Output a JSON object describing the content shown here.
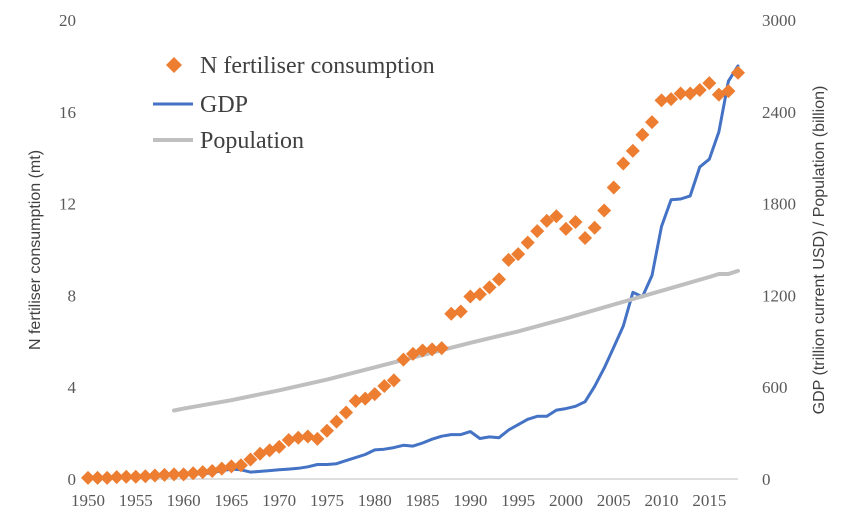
{
  "chart_data": {
    "type": "line",
    "xlabel": "",
    "ylabel": "N fertiliser consumption (mt)",
    "y2label": "GDP (trillion current USD) / Population (billion)",
    "xlim": [
      1950,
      2018
    ],
    "ylim": [
      0,
      20
    ],
    "y2lim": [
      0,
      3000
    ],
    "x_ticks": [
      "1950",
      "1955",
      "1960",
      "1965",
      "1970",
      "1975",
      "1980",
      "1985",
      "1990",
      "1995",
      "2000",
      "2005",
      "2010",
      "2015"
    ],
    "y_ticks": [
      "0",
      "4",
      "8",
      "12",
      "16",
      "20"
    ],
    "y2_ticks": [
      "0",
      "600",
      "1200",
      "1800",
      "2400",
      "3000"
    ],
    "grid": false,
    "legend_position": "top-left",
    "series": [
      {
        "name": "N fertiliser consumption",
        "axis": "left",
        "style": "diamond-markers",
        "color": "#ED7D31",
        "x": [
          1950,
          1951,
          1952,
          1953,
          1954,
          1955,
          1956,
          1957,
          1958,
          1959,
          1960,
          1961,
          1962,
          1963,
          1964,
          1965,
          1966,
          1967,
          1968,
          1969,
          1970,
          1971,
          1972,
          1973,
          1974,
          1975,
          1976,
          1977,
          1978,
          1979,
          1980,
          1981,
          1982,
          1983,
          1984,
          1985,
          1986,
          1987,
          1988,
          1989,
          1990,
          1991,
          1992,
          1993,
          1994,
          1995,
          1996,
          1997,
          1998,
          1999,
          2000,
          2001,
          2002,
          2003,
          2004,
          2005,
          2006,
          2007,
          2008,
          2009,
          2010,
          2011,
          2012,
          2013,
          2014,
          2015,
          2016,
          2017,
          2018
        ],
        "values": [
          0.05,
          0.05,
          0.05,
          0.08,
          0.1,
          0.1,
          0.12,
          0.15,
          0.18,
          0.2,
          0.2,
          0.25,
          0.3,
          0.35,
          0.45,
          0.55,
          0.6,
          0.85,
          1.1,
          1.25,
          1.4,
          1.7,
          1.8,
          1.85,
          1.75,
          2.1,
          2.5,
          2.9,
          3.4,
          3.5,
          3.7,
          4.05,
          4.3,
          5.2,
          5.45,
          5.6,
          5.65,
          5.7,
          7.2,
          7.3,
          7.95,
          8.05,
          8.35,
          8.7,
          9.55,
          9.8,
          10.3,
          10.8,
          11.25,
          11.45,
          10.9,
          11.2,
          10.5,
          10.95,
          11.7,
          12.7,
          13.75,
          14.3,
          15,
          15.55,
          16.5,
          16.55,
          16.8,
          16.8,
          16.95,
          17.25,
          16.75,
          16.9,
          17.7
        ]
      },
      {
        "name": "GDP",
        "axis": "right",
        "style": "line",
        "color": "#4472C4",
        "x": [
          1960,
          1961,
          1962,
          1963,
          1964,
          1965,
          1966,
          1967,
          1968,
          1969,
          1970,
          1971,
          1972,
          1973,
          1974,
          1975,
          1976,
          1977,
          1978,
          1979,
          1980,
          1981,
          1982,
          1983,
          1984,
          1985,
          1986,
          1987,
          1988,
          1989,
          1990,
          1991,
          1992,
          1993,
          1994,
          1995,
          1996,
          1997,
          1998,
          1999,
          2000,
          2001,
          2002,
          2003,
          2004,
          2005,
          2006,
          2007,
          2008,
          2009,
          2010,
          2011,
          2012,
          2013,
          2014,
          2015,
          2016,
          2017,
          2018
        ],
        "values": [
          30,
          30,
          35,
          40,
          55,
          65,
          60,
          45,
          50,
          55,
          60,
          65,
          70,
          80,
          95,
          95,
          100,
          120,
          140,
          160,
          190,
          195,
          205,
          220,
          215,
          235,
          260,
          280,
          290,
          290,
          310,
          265,
          275,
          270,
          320,
          355,
          390,
          410,
          410,
          450,
          460,
          475,
          505,
          605,
          725,
          860,
          1000,
          1220,
          1190,
          1330,
          1650,
          1825,
          1830,
          1850,
          2040,
          2090,
          2270,
          2600,
          2700
        ]
      },
      {
        "name": "Population",
        "axis": "right",
        "style": "line",
        "color": "#BFBFBF",
        "x": [
          1959,
          1960,
          1965,
          1970,
          1975,
          1980,
          1985,
          1990,
          1995,
          2000,
          2005,
          2010,
          2015,
          2016,
          2017,
          2018
        ],
        "values": [
          448,
          460,
          515,
          580,
          650,
          730,
          810,
          890,
          965,
          1050,
          1140,
          1230,
          1320,
          1340,
          1340,
          1360
        ]
      }
    ]
  }
}
